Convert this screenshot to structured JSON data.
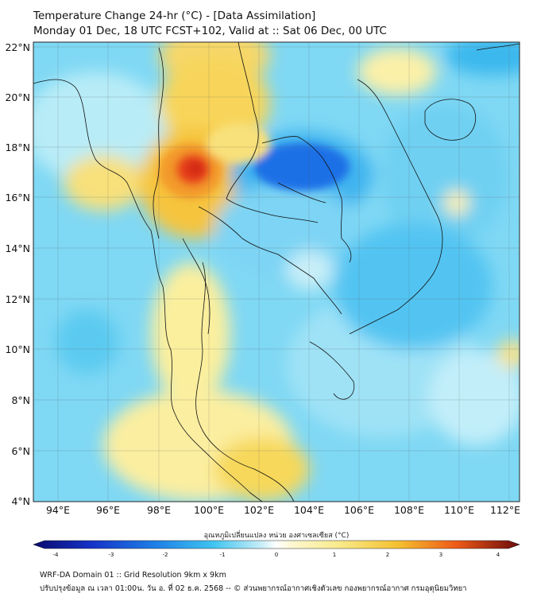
{
  "title": {
    "line1": "Temperature Change 24-hr (°C) - [Data Assimilation]",
    "line2": "Monday 01 Dec, 18 UTC FCST+102, Valid at :: Sat 06 Dec, 00 UTC"
  },
  "axes": {
    "lat_labels": [
      "22°N",
      "20°N",
      "18°N",
      "16°N",
      "14°N",
      "12°N",
      "10°N",
      "8°N",
      "6°N",
      "4°N"
    ],
    "lon_labels": [
      "94°E",
      "96°E",
      "98°E",
      "100°E",
      "102°E",
      "104°E",
      "106°E",
      "108°E",
      "110°E",
      "112°E"
    ]
  },
  "colorbar": {
    "title": "อุณหภูมิเปลี่ยนแปลง หน่วย องศาเซลเซียส (°C)",
    "ticks": [
      "-4",
      "-3",
      "-2",
      "-1",
      "0",
      "1",
      "2",
      "3",
      "4"
    ],
    "colors": {
      "strong_cool": "#0a1f8f",
      "cool": "#1e6fe0",
      "light_cool": "#6fd3f5",
      "neutral": "#e8f6fb",
      "light_warm": "#fbf3b0",
      "warm": "#f4c430",
      "hot": "#ef6a1c",
      "strong_hot": "#b0130f"
    }
  },
  "footer": {
    "line1": "WRF-DA Domain 01 :: Grid Resolution 9km x 9km",
    "line2": "ปรับปรุงข้อมูล ณ เวลา 01:00น. วัน อ. ที่ 02 ธ.ค. 2568 -- © ส่วนพยากรณ์อากาศเชิงตัวเลข กองพยากรณ์อากาศ กรมอุตุนิยมวิทยา"
  }
}
